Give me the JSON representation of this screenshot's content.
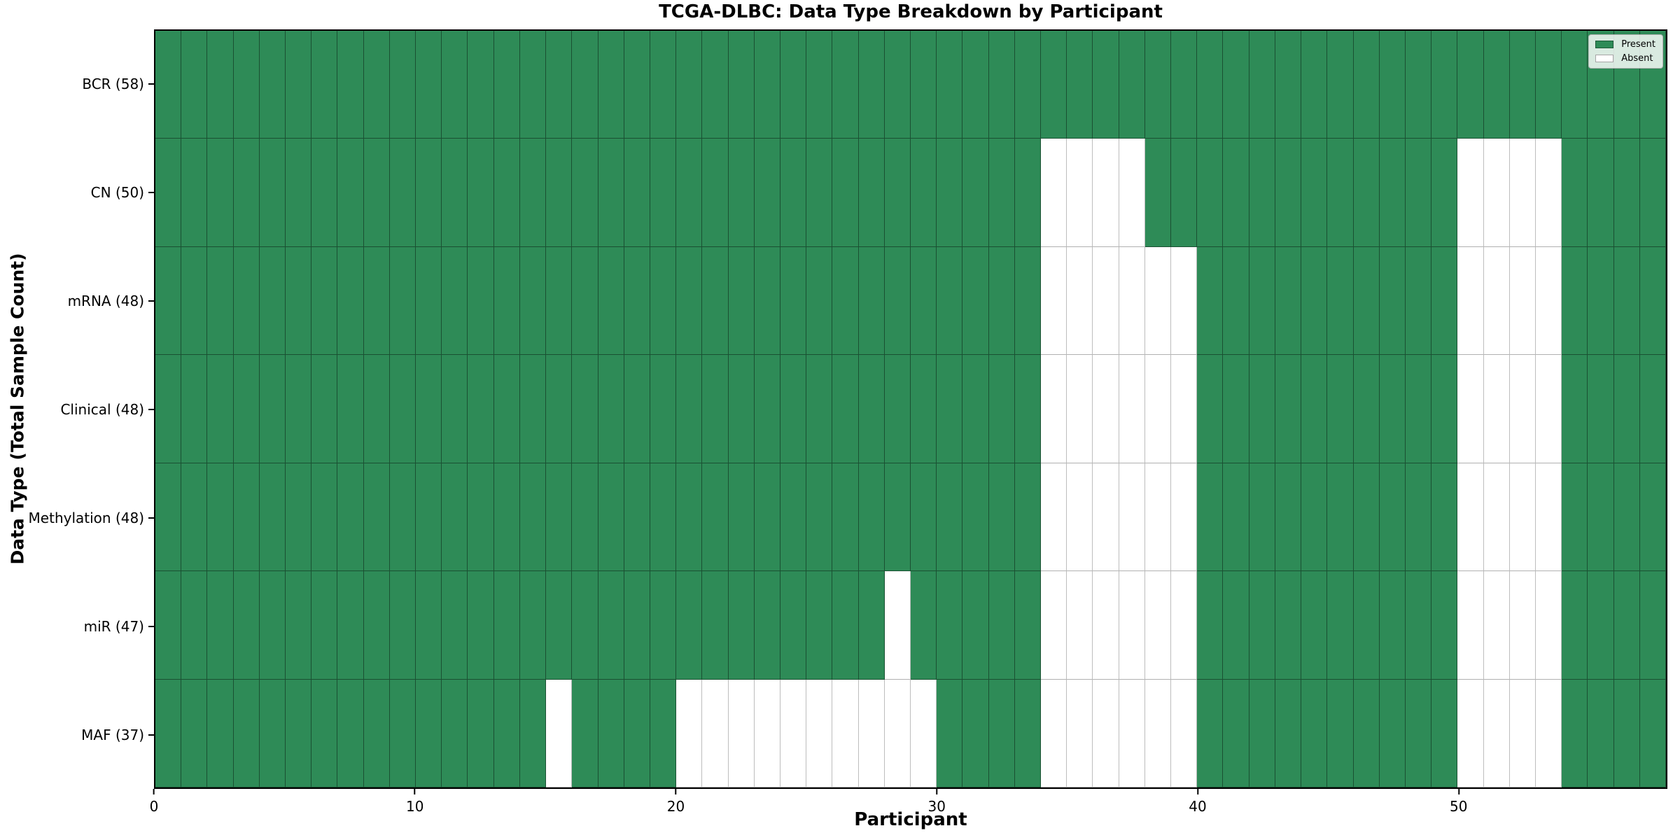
{
  "title": "TCGA-DLBC: Data Type Breakdown by Participant",
  "axes": {
    "xlabel": "Participant",
    "ylabel": "Data Type (Total Sample Count)"
  },
  "legend": {
    "position": "upper right",
    "items": [
      {
        "label": "Present",
        "color": "#2e8b57"
      },
      {
        "label": "Absent",
        "color": "#ffffff"
      }
    ]
  },
  "chart_data": {
    "type": "heatmap",
    "title": "TCGA-DLBC: Data Type Breakdown by Participant",
    "xlabel": "Participant",
    "ylabel": "Data Type (Total Sample Count)",
    "x_range": [
      0,
      58
    ],
    "x_ticks": [
      0,
      10,
      20,
      30,
      40,
      50
    ],
    "n_participants": 58,
    "grid": true,
    "colors": {
      "present": "#2e8b57",
      "absent": "#ffffff"
    },
    "cell_encoding": {
      "present": 1,
      "absent": 0
    },
    "rows": [
      {
        "label": "BCR (58)",
        "data_type": "BCR",
        "present_count": 58,
        "absent_participants": []
      },
      {
        "label": "CN (50)",
        "data_type": "CN",
        "present_count": 50,
        "absent_participants": [
          34,
          35,
          36,
          37,
          50,
          51,
          52,
          53
        ]
      },
      {
        "label": "mRNA (48)",
        "data_type": "mRNA",
        "present_count": 48,
        "absent_participants": [
          34,
          35,
          36,
          37,
          38,
          39,
          50,
          51,
          52,
          53
        ]
      },
      {
        "label": "Clinical (48)",
        "data_type": "Clinical",
        "present_count": 48,
        "absent_participants": [
          34,
          35,
          36,
          37,
          38,
          39,
          50,
          51,
          52,
          53
        ]
      },
      {
        "label": "Methylation (48)",
        "data_type": "Methylation",
        "present_count": 48,
        "absent_participants": [
          34,
          35,
          36,
          37,
          38,
          39,
          50,
          51,
          52,
          53
        ]
      },
      {
        "label": "miR (47)",
        "data_type": "miR",
        "present_count": 47,
        "absent_participants": [
          28,
          34,
          35,
          36,
          37,
          38,
          39,
          50,
          51,
          52,
          53
        ]
      },
      {
        "label": "MAF (37)",
        "data_type": "MAF",
        "present_count": 37,
        "absent_participants": [
          15,
          20,
          21,
          22,
          23,
          24,
          25,
          26,
          27,
          28,
          29,
          34,
          35,
          36,
          37,
          38,
          39,
          50,
          51,
          52,
          53
        ]
      }
    ]
  }
}
